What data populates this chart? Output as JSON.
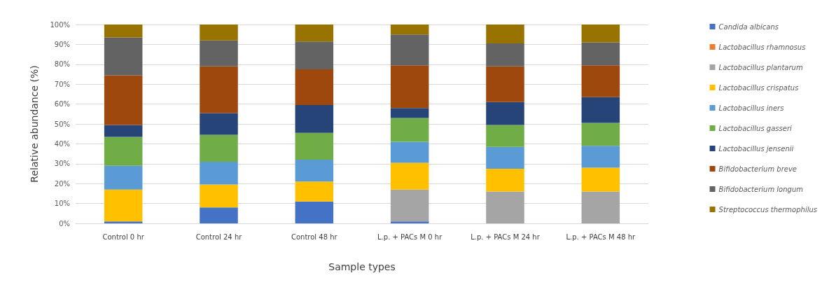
{
  "chart_data": {
    "type": "bar",
    "stacked": true,
    "xlabel": "Sample types",
    "ylabel": "Relative abundance (%)",
    "categories": [
      "Control 0 hr",
      "Control 24 hr",
      "Control 48 hr",
      "L.p. + PACs M 0 hr",
      "L.p. + PACs M 24 hr",
      "L.p. + PACs M 48 hr"
    ],
    "ylim": [
      0,
      100
    ],
    "yticks": [
      {
        "value": 0,
        "label": "0%"
      },
      {
        "value": 10,
        "label": "10%"
      },
      {
        "value": 20,
        "label": "20%"
      },
      {
        "value": 30,
        "label": "30%"
      },
      {
        "value": 40,
        "label": "40%"
      },
      {
        "value": 50,
        "label": "50%"
      },
      {
        "value": 60,
        "label": "60%"
      },
      {
        "value": 70,
        "label": "70%"
      },
      {
        "value": 80,
        "label": "80%"
      },
      {
        "value": 90,
        "label": "90%"
      },
      {
        "value": 100,
        "label": "100%"
      }
    ],
    "grid": "y",
    "legend": "right",
    "series": [
      {
        "name": "Candida albicans",
        "color": "#4472c4",
        "values": [
          1,
          8,
          11,
          1,
          0,
          0
        ]
      },
      {
        "name": "Lactobacillus rhamnosus",
        "color": "#ed7d31",
        "values": [
          0,
          0,
          0,
          0,
          0,
          0
        ]
      },
      {
        "name": "Lactobacillus plantarum",
        "color": "#a5a5a5",
        "values": [
          0,
          0,
          0,
          16,
          16,
          16
        ]
      },
      {
        "name": "Lactobacillus crispatus",
        "color": "#ffc000",
        "values": [
          16,
          11.5,
          10,
          13.5,
          11.5,
          12
        ]
      },
      {
        "name": "Lactobacillus iners",
        "color": "#5b9bd5",
        "values": [
          12,
          11.5,
          11,
          10.5,
          11,
          11
        ]
      },
      {
        "name": "Lactobacillus gasseri",
        "color": "#70ad47",
        "values": [
          14.5,
          13.5,
          13.5,
          12,
          11,
          11.5
        ]
      },
      {
        "name": "Lactobacillus jensenii",
        "color": "#264478",
        "values": [
          6,
          11,
          14,
          5,
          11.5,
          13
        ]
      },
      {
        "name": "Bifidobacterium breve",
        "color": "#9e480e",
        "values": [
          25,
          23.5,
          18,
          21.5,
          18,
          16
        ]
      },
      {
        "name": "Bifidobacterium longum",
        "color": "#636363",
        "values": [
          19,
          13,
          14,
          15.5,
          11.5,
          11.5
        ]
      },
      {
        "name": "Streptococcus thermophilus",
        "color": "#997300",
        "values": [
          6.5,
          8,
          8.5,
          5,
          9.5,
          9
        ]
      }
    ]
  }
}
